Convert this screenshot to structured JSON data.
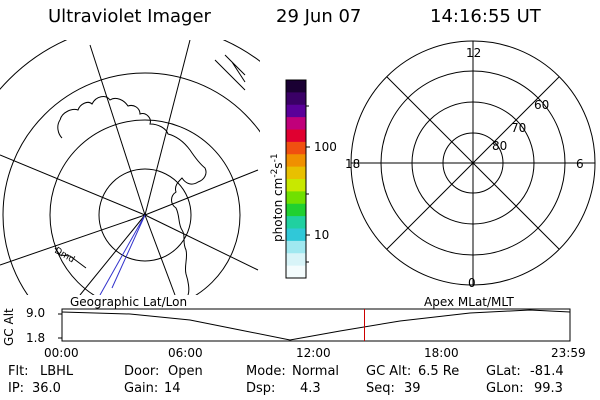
{
  "header": {
    "instrument": "Ultraviolet Imager",
    "date": "29 Jun 07",
    "time": "14:16:55 UT"
  },
  "colorbar": {
    "unit": "photon cm",
    "unit_sup1": "-2",
    "unit_mid": "s",
    "unit_sup2": "-1",
    "tick_100": "100",
    "tick_10": "10",
    "colors": [
      "#1a0033",
      "#3a0066",
      "#5a0099",
      "#c0007a",
      "#e00030",
      "#f05010",
      "#f09000",
      "#e8c000",
      "#c8e800",
      "#70e000",
      "#20d030",
      "#20d0a0",
      "#30c8d8",
      "#a0e8f0",
      "#d8f4f8",
      "#f4fcfd"
    ]
  },
  "polar_plot": {
    "mlt_labels": {
      "top": "12",
      "left": "18",
      "right": "6",
      "bottom": "0"
    },
    "lat_labels": [
      "60",
      "70",
      "80"
    ]
  },
  "left_panel": {
    "label": "Geographic Lat/Lon",
    "curve_label": "Dmd"
  },
  "right_panel": {
    "label": "Apex MLat/MLT"
  },
  "altitude_strip": {
    "axis_label": "GC Alt",
    "y_max": "9.0",
    "y_min": "1.8",
    "x_ticks": [
      "00:00",
      "06:00",
      "12:00",
      "18:00",
      "23:59"
    ],
    "marker_time": "14:16:55"
  },
  "info": {
    "flt_label": "Flt:",
    "flt": "LBHL",
    "door_label": "Door:",
    "door": "Open",
    "mode_label": "Mode:",
    "mode": "Normal",
    "gcalt_label": "GC Alt:",
    "gcalt": "6.5 Re",
    "glat_label": "GLat:",
    "glat": "-81.4",
    "ip_label": "IP:",
    "ip": "36.0",
    "gain_label": "Gain:",
    "gain": "14",
    "dsp_label": "Dsp:",
    "dsp": "4.3",
    "seq_label": "Seq:",
    "seq": "39",
    "glon_label": "GLon:",
    "glon": "99.3"
  }
}
